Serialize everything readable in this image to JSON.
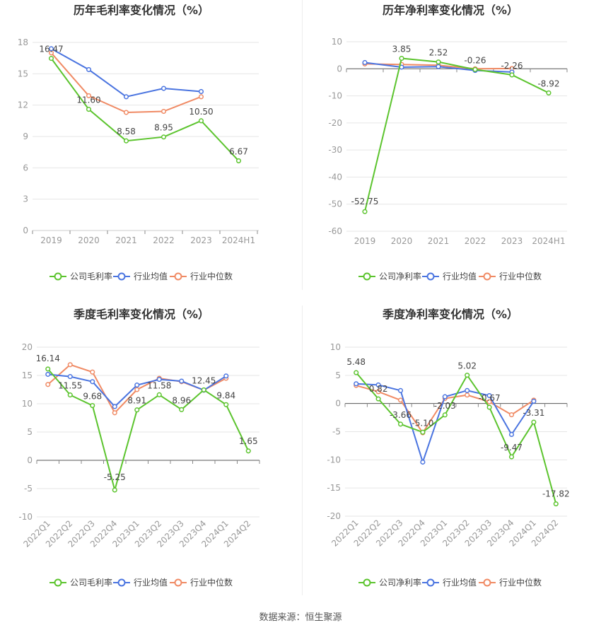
{
  "source_label": "数据来源：恒生聚源",
  "legend_labels": {
    "company_gross": "公司毛利率",
    "company_net": "公司净利率",
    "industry_avg": "行业均值",
    "industry_median": "行业中位数"
  },
  "colors": {
    "company": "#5cc42e",
    "avg": "#4a74e0",
    "median": "#f08a64",
    "grid": "#e6e6e6",
    "axis": "#999999",
    "title": "#333333",
    "label": "#444444"
  },
  "chart_data": [
    {
      "type": "line",
      "title": "历年毛利率变化情况（%）",
      "categories": [
        "2019",
        "2020",
        "2021",
        "2022",
        "2023",
        "2024H1"
      ],
      "ylim": [
        0,
        18
      ],
      "yticks": [
        0,
        3,
        6,
        9,
        12,
        15,
        18
      ],
      "series": [
        {
          "name": "公司毛利率",
          "role": "company",
          "values": [
            16.47,
            11.6,
            8.58,
            8.95,
            10.5,
            6.67
          ],
          "labels": [
            "16.47",
            "11.60",
            "8.58",
            "8.95",
            "10.50",
            "6.67"
          ]
        },
        {
          "name": "行业均值",
          "role": "avg",
          "values": [
            17.4,
            15.4,
            12.8,
            13.6,
            13.3,
            null
          ]
        },
        {
          "name": "行业中位数",
          "role": "median",
          "values": [
            17.0,
            12.9,
            11.3,
            11.4,
            12.8,
            null
          ]
        }
      ]
    },
    {
      "type": "line",
      "title": "历年净利率变化情况（%）",
      "categories": [
        "2019",
        "2020",
        "2021",
        "2022",
        "2023",
        "2024H1"
      ],
      "ylim": [
        -60,
        10
      ],
      "yticks": [
        -60,
        -50,
        -40,
        -30,
        -20,
        -10,
        0,
        10
      ],
      "series": [
        {
          "name": "公司净利率",
          "role": "company",
          "values": [
            -52.75,
            3.85,
            2.52,
            -0.26,
            -2.26,
            -8.92
          ],
          "labels": [
            "-52.75",
            "3.85",
            "2.52",
            "-0.26",
            "-2.26",
            "-8.92"
          ]
        },
        {
          "name": "行业均值",
          "role": "avg",
          "values": [
            2.3,
            0.6,
            0.8,
            -0.6,
            -1.2,
            null
          ]
        },
        {
          "name": "行业中位数",
          "role": "median",
          "values": [
            1.8,
            1.6,
            1.3,
            0.0,
            0.1,
            null
          ]
        }
      ]
    },
    {
      "type": "line",
      "title": "季度毛利率变化情况（%）",
      "categories": [
        "2022Q1",
        "2022Q2",
        "2022Q3",
        "2022Q4",
        "2023Q1",
        "2023Q2",
        "2023Q3",
        "2023Q4",
        "2024Q1",
        "2024Q2"
      ],
      "ylim": [
        -10,
        20
      ],
      "yticks": [
        -10,
        -5,
        0,
        5,
        10,
        15,
        20
      ],
      "rotate_x_labels": true,
      "series": [
        {
          "name": "公司毛利率",
          "role": "company",
          "values": [
            16.14,
            11.55,
            9.68,
            -5.25,
            8.91,
            11.58,
            8.96,
            12.45,
            9.84,
            1.65
          ],
          "labels": [
            "16.14",
            "11.55",
            "9.68",
            "-5.25",
            "8.91",
            "11.58",
            "8.96",
            "12.45",
            "9.84",
            "1.65"
          ]
        },
        {
          "name": "行业均值",
          "role": "avg",
          "values": [
            15.2,
            14.8,
            13.9,
            9.5,
            13.3,
            14.3,
            14.0,
            12.4,
            14.9,
            null
          ]
        },
        {
          "name": "行业中位数",
          "role": "median",
          "values": [
            13.4,
            16.9,
            15.6,
            8.4,
            12.5,
            14.5,
            13.9,
            12.4,
            14.5,
            null
          ]
        }
      ]
    },
    {
      "type": "line",
      "title": "季度净利率变化情况（%）",
      "categories": [
        "2022Q1",
        "2022Q2",
        "2022Q3",
        "2022Q4",
        "2023Q1",
        "2023Q2",
        "2023Q3",
        "2023Q4",
        "2024Q1",
        "2024Q2"
      ],
      "ylim": [
        -20,
        10
      ],
      "yticks": [
        -20,
        -15,
        -10,
        -5,
        0,
        5,
        10
      ],
      "rotate_x_labels": true,
      "series": [
        {
          "name": "公司净利率",
          "role": "company",
          "values": [
            5.48,
            0.82,
            -3.66,
            -5.1,
            -2.03,
            5.02,
            -0.67,
            -9.47,
            -3.31,
            -17.82
          ],
          "labels": [
            "5.48",
            "0.82",
            "-3.66",
            "-5.10",
            "-2.03",
            "5.02",
            "-0.67",
            "-9.47",
            "-3.31",
            "-17.82"
          ]
        },
        {
          "name": "行业均值",
          "role": "avg",
          "values": [
            3.5,
            3.3,
            2.3,
            -10.4,
            1.2,
            2.3,
            1.4,
            -5.5,
            0.4,
            null
          ]
        },
        {
          "name": "行业中位数",
          "role": "median",
          "values": [
            3.2,
            2.1,
            0.6,
            -5.2,
            0.9,
            1.5,
            0.3,
            -2.0,
            0.6,
            null
          ]
        }
      ]
    }
  ]
}
